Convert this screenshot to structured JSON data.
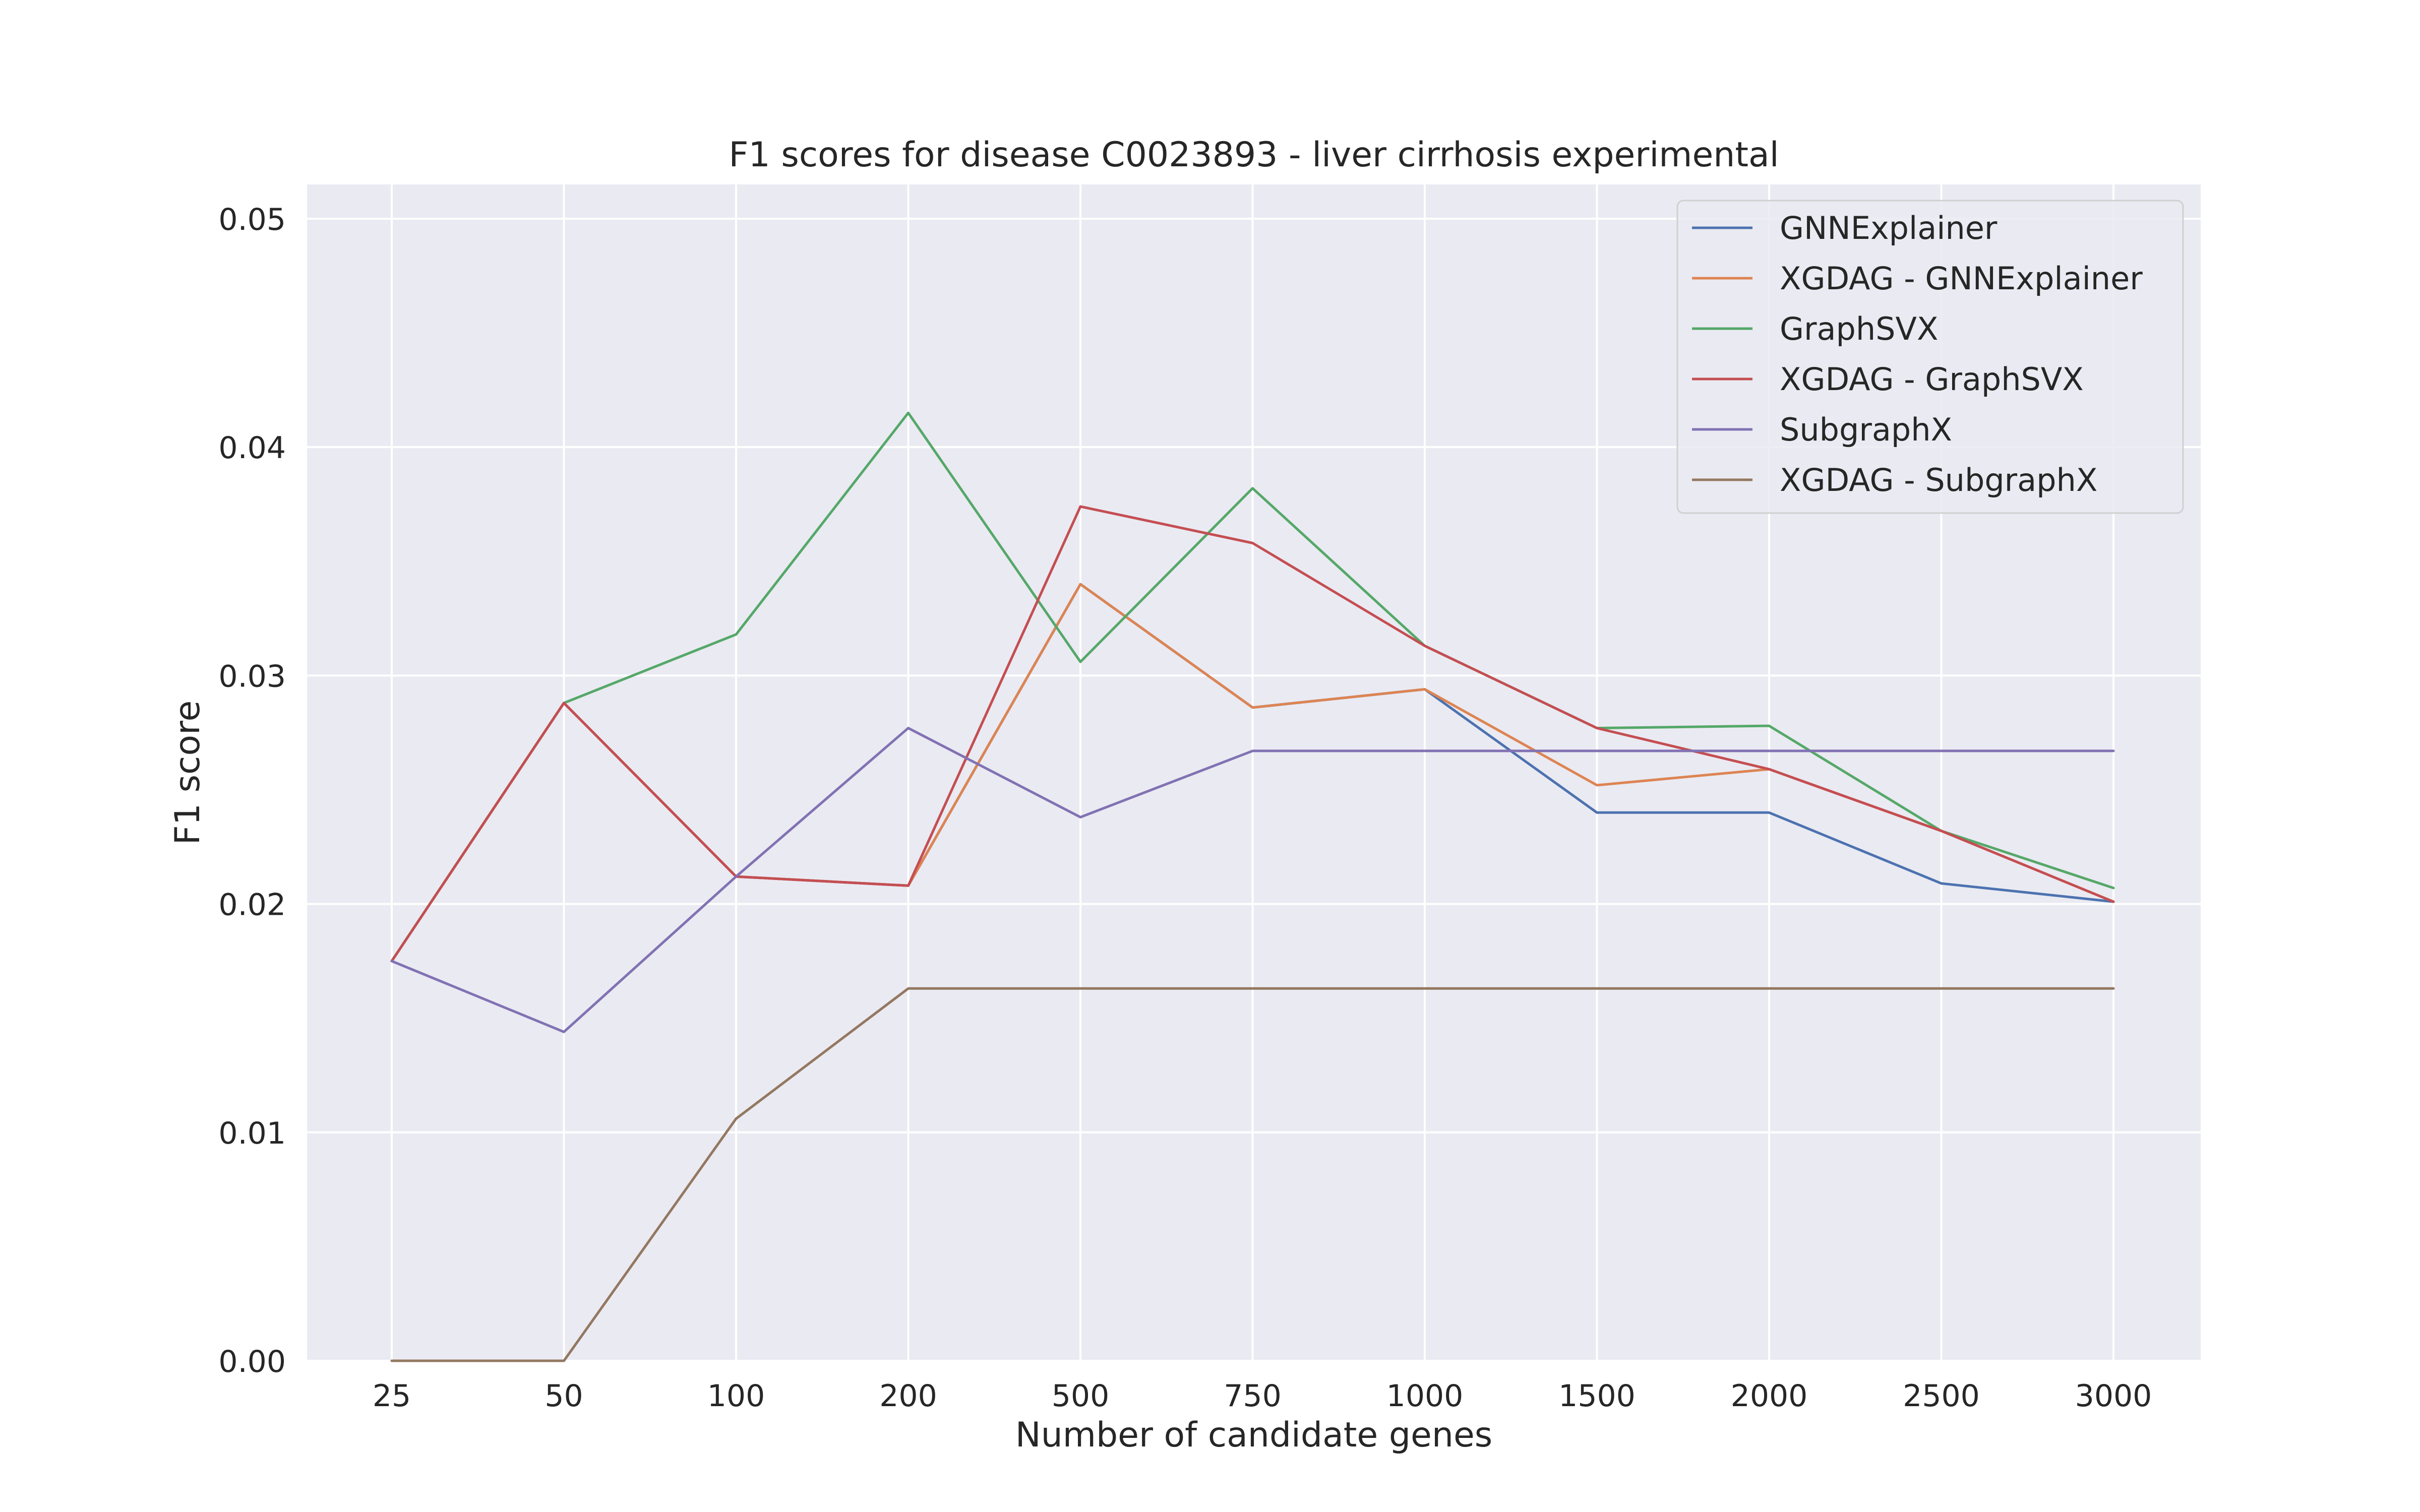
{
  "chart_data": {
    "type": "line",
    "title": "F1 scores for disease C0023893 - liver cirrhosis experimental",
    "xlabel": "Number of candidate genes",
    "ylabel": "F1 score",
    "x": [
      "25",
      "50",
      "100",
      "200",
      "500",
      "750",
      "1000",
      "1500",
      "2000",
      "2500",
      "3000"
    ],
    "ylim": [
      0,
      0.0515
    ],
    "yticks": [
      "0.00",
      "0.01",
      "0.02",
      "0.03",
      "0.04",
      "0.05"
    ],
    "grid": true,
    "legend": "top-right",
    "series": [
      {
        "name": "GNNExplainer",
        "color": "#4c72b0",
        "values": [
          0.0175,
          0.0288,
          0.0212,
          0.0208,
          0.034,
          0.0286,
          0.0294,
          0.024,
          0.024,
          0.0209,
          0.0201
        ]
      },
      {
        "name": "XGDAG - GNNExplainer",
        "color": "#dd8452",
        "values": [
          0.0175,
          0.0288,
          0.0212,
          0.0208,
          0.034,
          0.0286,
          0.0294,
          0.0252,
          0.0259,
          0.0232,
          0.0201
        ]
      },
      {
        "name": "GraphSVX",
        "color": "#55a868",
        "values": [
          0.0175,
          0.0288,
          0.0318,
          0.0415,
          0.0306,
          0.0382,
          0.0313,
          0.0277,
          0.0278,
          0.0232,
          0.0207
        ]
      },
      {
        "name": "XGDAG - GraphSVX",
        "color": "#c44e52",
        "values": [
          0.0175,
          0.0288,
          0.0212,
          0.0208,
          0.0374,
          0.0358,
          0.0313,
          0.0277,
          0.0259,
          0.0232,
          0.0201
        ]
      },
      {
        "name": "SubgraphX",
        "color": "#8172b3",
        "values": [
          0.0175,
          0.0144,
          0.0212,
          0.0277,
          0.0238,
          0.0267,
          0.0267,
          0.0267,
          0.0267,
          0.0267,
          0.0267
        ]
      },
      {
        "name": "XGDAG - SubgraphX",
        "color": "#937860",
        "values": [
          0.0,
          0.0,
          0.0106,
          0.0163,
          0.0163,
          0.0163,
          0.0163,
          0.0163,
          0.0163,
          0.0163,
          0.0163
        ]
      }
    ]
  }
}
